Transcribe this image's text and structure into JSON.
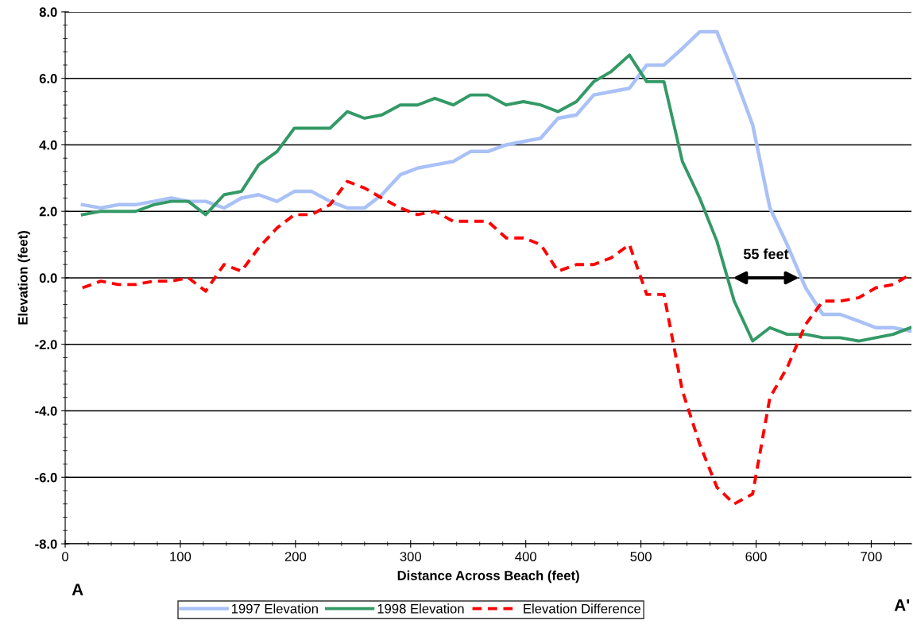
{
  "chart_data": {
    "type": "line",
    "xlabel": "Distance Across Beach (feet)",
    "ylabel": "Elevation (feet)",
    "x": [
      15,
      31,
      46,
      61,
      77,
      92,
      107,
      122,
      138,
      153,
      168,
      184,
      199,
      214,
      230,
      245,
      260,
      275,
      291,
      306,
      321,
      337,
      352,
      367,
      383,
      398,
      413,
      428,
      444,
      459,
      474,
      490,
      505,
      520,
      536,
      551,
      566,
      581,
      597,
      612,
      627,
      643,
      658,
      673,
      689,
      704,
      719,
      734
    ],
    "series": [
      {
        "name": "1997 Elevation",
        "color": "#a9c1f7",
        "line_style": "solid",
        "values": [
          2.2,
          2.1,
          2.2,
          2.2,
          2.3,
          2.4,
          2.3,
          2.3,
          2.1,
          2.4,
          2.5,
          2.3,
          2.6,
          2.6,
          2.3,
          2.1,
          2.1,
          2.5,
          3.1,
          3.3,
          3.4,
          3.5,
          3.8,
          3.8,
          4.0,
          4.1,
          4.2,
          4.8,
          4.9,
          5.5,
          5.6,
          5.7,
          6.4,
          6.4,
          6.9,
          7.4,
          7.4,
          6.1,
          4.6,
          2.1,
          1.0,
          -0.3,
          -1.1,
          -1.1,
          -1.3,
          -1.5,
          -1.5,
          -1.6
        ]
      },
      {
        "name": "1998 Elevation",
        "color": "#339966",
        "line_style": "solid",
        "values": [
          1.9,
          2.0,
          2.0,
          2.0,
          2.2,
          2.3,
          2.3,
          1.9,
          2.5,
          2.6,
          3.4,
          3.8,
          4.5,
          4.5,
          4.5,
          5.0,
          4.8,
          4.9,
          5.2,
          5.2,
          5.4,
          5.2,
          5.5,
          5.5,
          5.2,
          5.3,
          5.2,
          5.0,
          5.3,
          5.9,
          6.2,
          6.7,
          5.9,
          5.9,
          3.5,
          2.4,
          1.1,
          -0.7,
          -1.9,
          -1.5,
          -1.7,
          -1.7,
          -1.8,
          -1.8,
          -1.9,
          -1.8,
          -1.7,
          -1.5
        ]
      },
      {
        "name": "Elevation Difference",
        "color": "#ff0000",
        "line_style": "dashed",
        "values": [
          -0.3,
          -0.1,
          -0.2,
          -0.2,
          -0.1,
          -0.1,
          0.0,
          -0.4,
          0.4,
          0.2,
          0.9,
          1.5,
          1.9,
          1.9,
          2.2,
          2.9,
          2.7,
          2.4,
          2.1,
          1.9,
          2.0,
          1.7,
          1.7,
          1.7,
          1.2,
          1.2,
          1.0,
          0.2,
          0.4,
          0.4,
          0.6,
          1.0,
          -0.5,
          -0.5,
          -3.4,
          -5.0,
          -6.3,
          -6.8,
          -6.5,
          -3.6,
          -2.7,
          -1.4,
          -0.7,
          -0.7,
          -0.6,
          -0.3,
          -0.2,
          0.1
        ]
      }
    ],
    "xlim": [
      0,
      735
    ],
    "xticks": [
      0,
      100,
      200,
      300,
      400,
      500,
      600,
      700
    ],
    "ylim": [
      -8,
      8
    ],
    "yticks": [
      {
        "value": -8,
        "label": "-8.0"
      },
      {
        "value": -6,
        "label": "-6.0"
      },
      {
        "value": -4,
        "label": "-4.0"
      },
      {
        "value": -2,
        "label": "-2.0"
      },
      {
        "value": 0,
        "label": "0.0"
      },
      {
        "value": 2,
        "label": "2.0"
      },
      {
        "value": 4,
        "label": "4.0"
      },
      {
        "value": 6,
        "label": "6.0"
      },
      {
        "value": 8,
        "label": "8.0"
      }
    ],
    "grid": "y",
    "legend": "bottom",
    "marker": "none",
    "annotations": [
      "55 feet",
      "A",
      "A'"
    ]
  }
}
